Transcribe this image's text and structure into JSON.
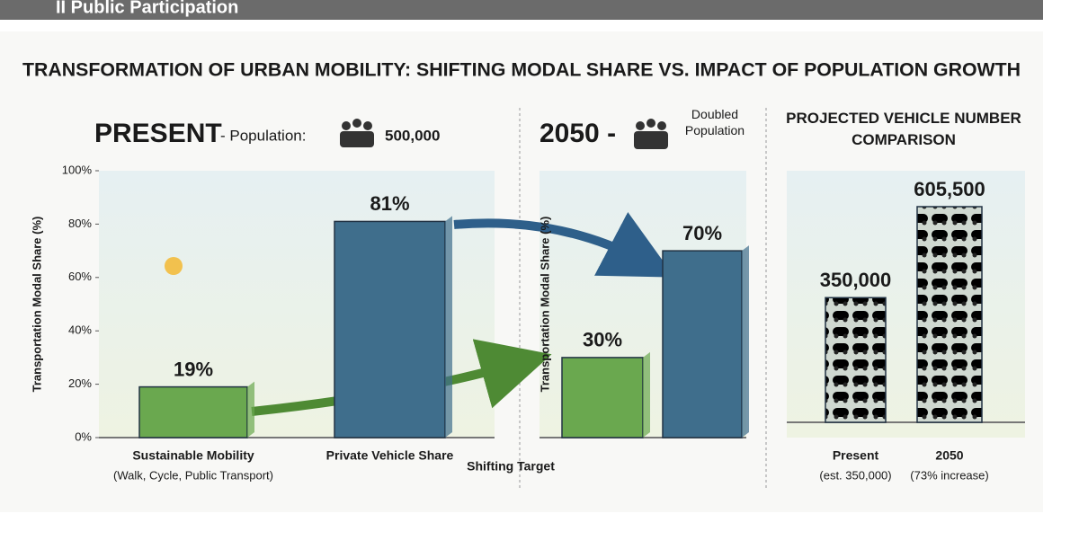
{
  "header": {
    "title": "II Public Participation"
  },
  "title": "TRANSFORMATION OF URBAN MOBILITY: SHIFTING MODAL SHARE VS. IMPACT OF POPULATION GROWTH",
  "chart_data": [
    {
      "type": "bar",
      "title": "PRESENT",
      "subtitle": "- Population:",
      "population": "500,000",
      "ylabel": "Transportation Modal Share (%)",
      "categories": [
        "Sustainable Mobility",
        "Private Vehicle Share"
      ],
      "category_notes": [
        "(Walk, Cycle, Public Transport)",
        null
      ],
      "values": [
        19,
        81
      ],
      "value_labels": [
        "19%",
        "81%"
      ],
      "colors": [
        "#6aa84f",
        "#3f6e8c"
      ],
      "ylim": [
        0,
        100
      ],
      "yticks": [
        {
          "value": 0,
          "label": "0%"
        },
        {
          "value": 20,
          "label": "20%"
        },
        {
          "value": 40,
          "label": "40%"
        },
        {
          "value": 60,
          "label": "60%"
        },
        {
          "value": 80,
          "label": "80%"
        },
        {
          "value": 100,
          "label": "100%"
        }
      ]
    },
    {
      "type": "bar",
      "title": "2050 -",
      "subtitle": "Doubled Population",
      "ylabel": "Transportation Modal Share (%)",
      "categories": [
        null,
        null
      ],
      "values": [
        30,
        70
      ],
      "value_labels": [
        "30%",
        "70%"
      ],
      "colors": [
        "#6aa84f",
        "#3f6e8c"
      ],
      "ylim": [
        0,
        100
      ],
      "annotation": "Shifting Target"
    },
    {
      "type": "bar",
      "title": "PROJECTED VEHICLE NUMBER COMPARISON",
      "categories": [
        "Present",
        "2050"
      ],
      "category_notes": [
        "(est. 350,000)",
        "(73% increase)"
      ],
      "values": [
        350000,
        605500
      ],
      "value_labels": [
        "350,000",
        "605,500"
      ],
      "colors": [
        "#3d6b5a",
        "#7a8a4a"
      ]
    }
  ]
}
